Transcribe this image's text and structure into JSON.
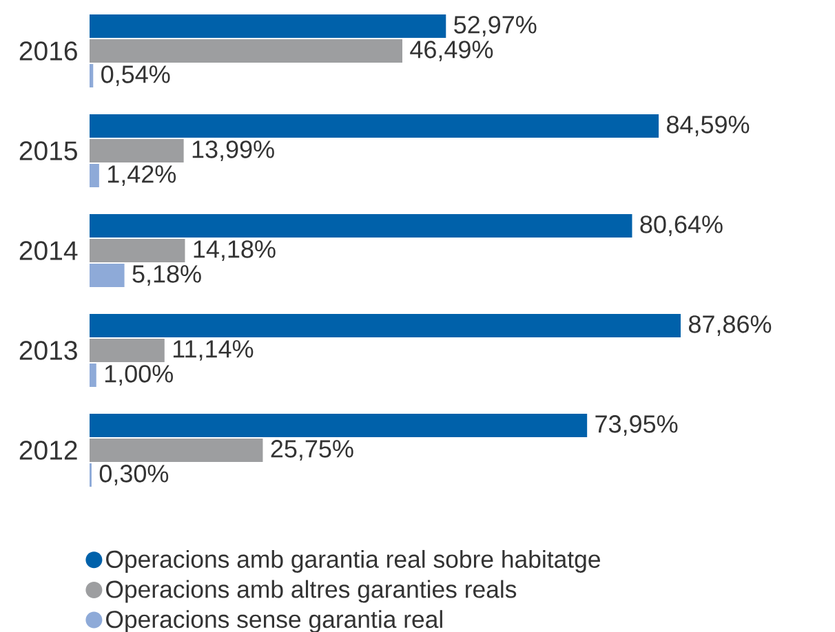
{
  "chart_data": {
    "type": "bar",
    "orientation": "horizontal",
    "categories": [
      "2016",
      "2015",
      "2014",
      "2013",
      "2012"
    ],
    "series": [
      {
        "name": "Operacions amb garantia real sobre habitatge",
        "color": "#0061aa",
        "values": [
          52.97,
          84.59,
          80.64,
          87.86,
          73.95
        ],
        "value_labels": [
          "52,97%",
          "84,59%",
          "80,64%",
          "87,86%",
          "73,95%"
        ]
      },
      {
        "name": "Operacions amb altres garanties reals",
        "color": "#9d9ea0",
        "values": [
          46.49,
          13.99,
          14.18,
          11.14,
          25.75
        ],
        "value_labels": [
          "46,49%",
          "13,99%",
          "14,18%",
          "11,14%",
          "25,75%"
        ]
      },
      {
        "name": "Operacions sense garantia real",
        "color": "#8eaad8",
        "values": [
          0.54,
          1.42,
          5.18,
          1.0,
          0.3
        ],
        "value_labels": [
          "0,54%",
          "1,42%",
          "5,18%",
          "1,00%",
          "0,30%"
        ]
      }
    ],
    "tick_labels": "y",
    "legend": "bottom left"
  }
}
